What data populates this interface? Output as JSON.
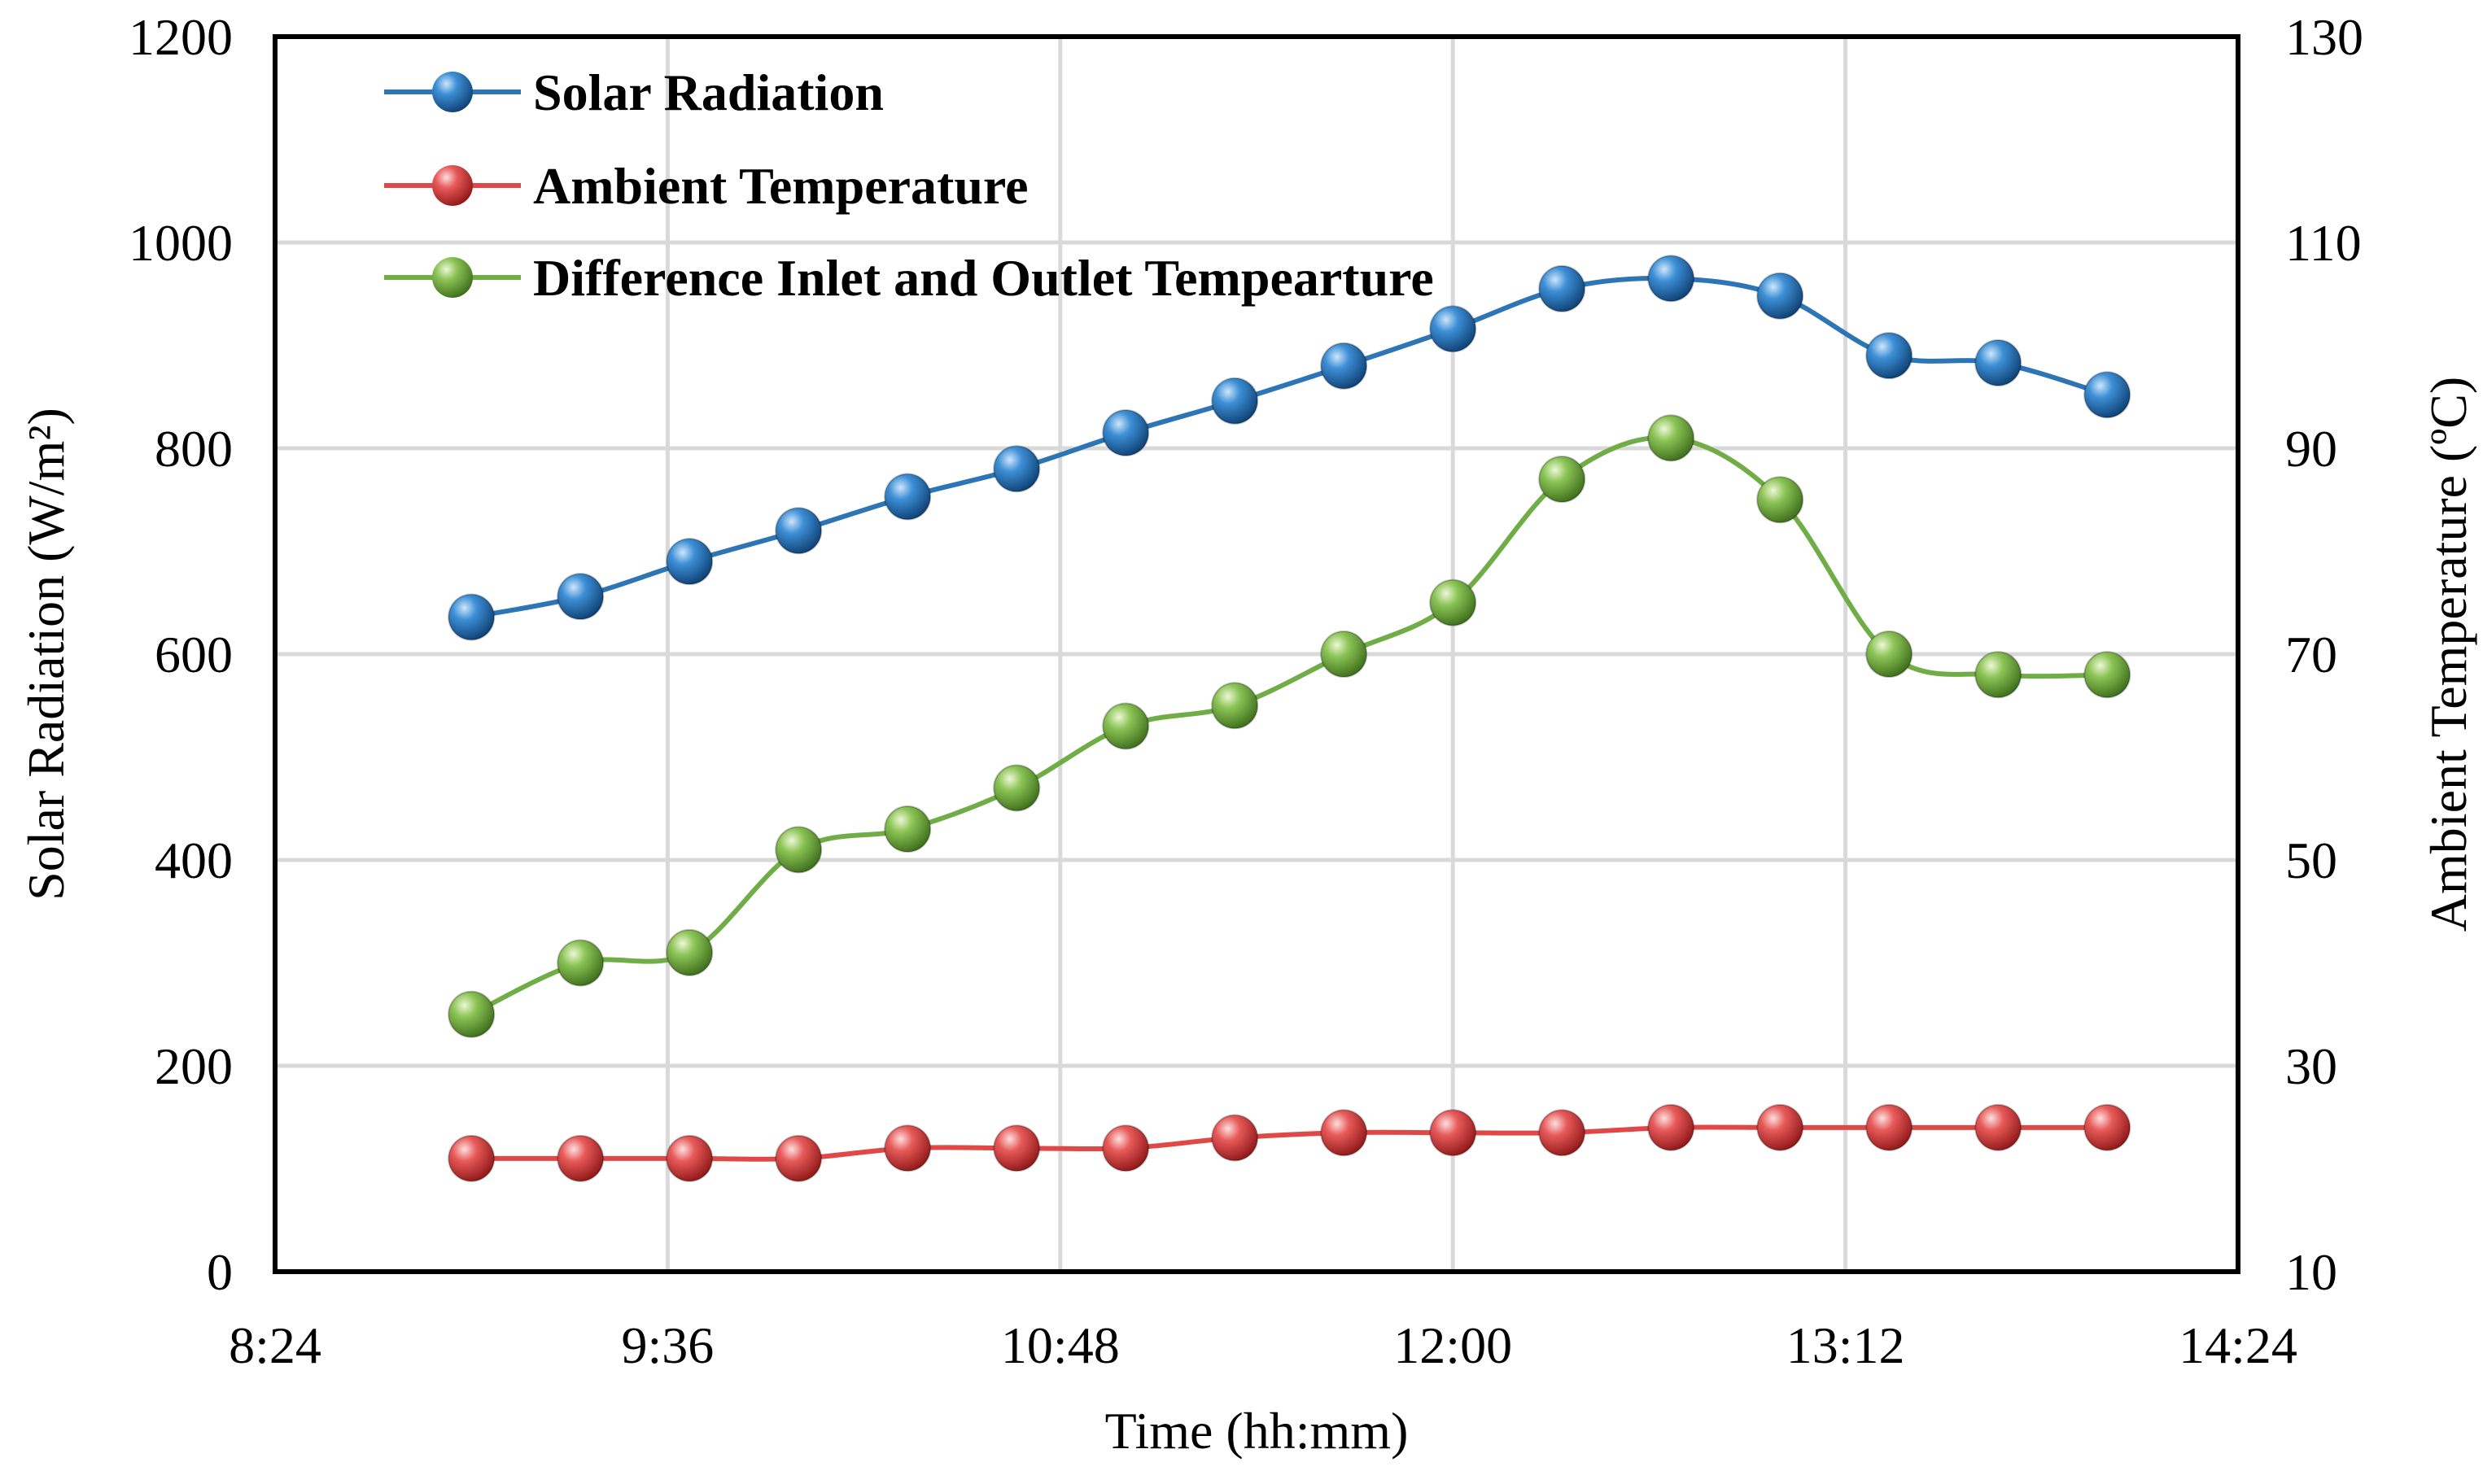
{
  "chart_data": {
    "type": "line",
    "title": "",
    "xlabel": "Time (hh:mm)",
    "ylabel_left": "Solar Radiation (W/m²)",
    "ylabel_right": "Ambient Temperature (ºC)",
    "x_ticks": [
      "8:24",
      "9:36",
      "10:48",
      "12:00",
      "13:12",
      "14:24"
    ],
    "x_range_minutes": [
      504,
      864
    ],
    "y_left_ticks": [
      "0",
      "200",
      "400",
      "600",
      "800",
      "1000",
      "1200"
    ],
    "y_left_range": [
      0,
      1200
    ],
    "y_right_ticks": [
      "10",
      "30",
      "50",
      "70",
      "90",
      "110",
      "130"
    ],
    "y_right_range": [
      10,
      130
    ],
    "grid": true,
    "legend_position": "top-left",
    "x_minutes": [
      540,
      560,
      580,
      600,
      620,
      640,
      660,
      680,
      700,
      720,
      740,
      760,
      780,
      800,
      820,
      840
    ],
    "series": [
      {
        "name": "Solar Radiation",
        "axis": "left",
        "color": "#2e75b6",
        "values": [
          636,
          656,
          690,
          720,
          753,
          780,
          815,
          846,
          880,
          916,
          955,
          965,
          948,
          890,
          883,
          852
        ]
      },
      {
        "name": "Ambient Temperature",
        "axis": "right",
        "color": "#e04848",
        "values": [
          21,
          21,
          21,
          21,
          22,
          22,
          22,
          23,
          23.5,
          23.5,
          23.5,
          24,
          24,
          24,
          24,
          24
        ]
      },
      {
        "name": "Difference Inlet and Outlet Tempearture",
        "axis": "right",
        "color": "#70ad47",
        "values": [
          35,
          40,
          41,
          51,
          53,
          57,
          63,
          65,
          70,
          75,
          87,
          91,
          85,
          70,
          68,
          68
        ]
      }
    ]
  }
}
